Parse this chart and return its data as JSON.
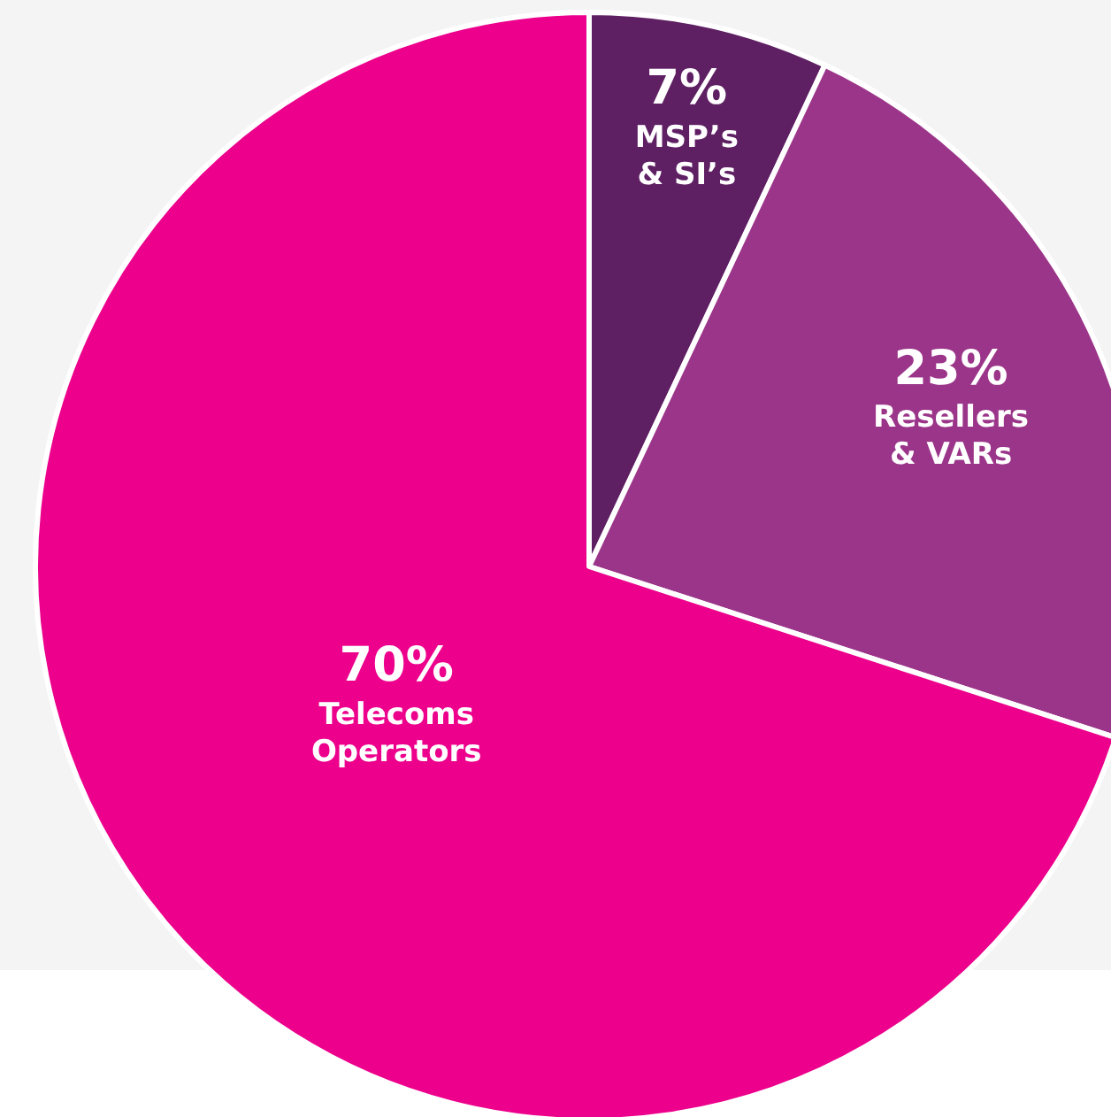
{
  "chart_data": {
    "type": "pie",
    "categories": [
      "MSP’s\n& SI’s",
      "Resellers\n& VARs",
      "Telecoms\nOperators"
    ],
    "values": [
      7,
      23,
      70
    ],
    "colors": [
      "#5e1f63",
      "#9b3589",
      "#ec008c"
    ],
    "value_labels": [
      "7%",
      "23%",
      "70%"
    ]
  }
}
